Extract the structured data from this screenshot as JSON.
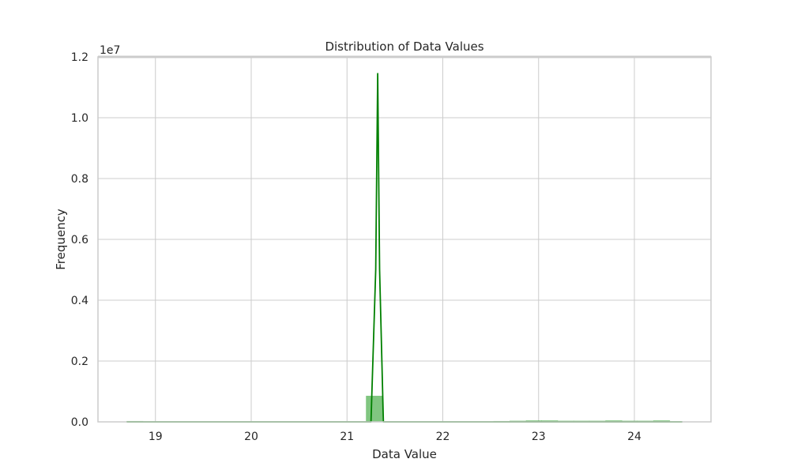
{
  "chart_data": {
    "type": "bar",
    "title": "Distribution of Data Values",
    "xlabel": "Data Value",
    "ylabel": "Frequency",
    "y_offset_label": "1e7",
    "y_scale": 10000000,
    "xlim": [
      18.4,
      24.8
    ],
    "ylim": [
      0,
      1.2
    ],
    "x_ticks": [
      19,
      20,
      21,
      22,
      23,
      24
    ],
    "x_tick_labels": [
      "19",
      "20",
      "21",
      "22",
      "23",
      "24"
    ],
    "y_ticks": [
      0,
      0.2,
      0.4,
      0.6,
      0.8,
      1.0,
      1.2
    ],
    "y_tick_labels": [
      "0.0",
      "0.2",
      "0.4",
      "0.6",
      "0.8",
      "1.0",
      "1.2"
    ],
    "grid": true,
    "histogram": {
      "bin_edges": [
        18.7,
        18.87,
        19.03,
        19.2,
        19.37,
        19.53,
        19.7,
        19.87,
        20.03,
        20.2,
        20.37,
        20.53,
        20.7,
        20.87,
        21.03,
        21.2,
        21.37,
        21.53,
        21.7,
        21.87,
        22.03,
        22.2,
        22.37,
        22.53,
        22.7,
        22.87,
        23.03,
        23.2,
        23.37,
        23.53,
        23.7,
        23.87,
        24.03,
        24.2,
        24.37,
        24.53
      ],
      "counts": [
        0.002,
        0.0,
        0.0,
        0.0,
        0.0,
        0.0,
        0.0,
        0.0,
        0.0,
        0.0,
        0.0,
        0.0,
        0.0,
        0.0,
        0.0,
        0.085,
        0.0,
        0.0,
        0.0,
        0.0,
        0.0,
        0.0,
        0.0,
        0.002,
        0.003,
        0.004,
        0.004,
        0.003,
        0.003,
        0.003,
        0.004,
        0.003,
        0.003,
        0.004,
        0.0
      ]
    },
    "kde": {
      "x": [
        18.7,
        21.0,
        21.25,
        21.3,
        21.32,
        21.34,
        21.38,
        21.5,
        22.5,
        24.5
      ],
      "y": [
        0.0,
        0.0,
        0.0,
        0.5,
        1.145,
        0.5,
        0.0,
        0.0,
        0.0,
        0.0
      ]
    },
    "colors": {
      "bars_fill": "#2ca02c",
      "bars_fill_opacity": 0.6,
      "kde_line": "#008000",
      "grid": "#cccccc",
      "spine": "#cccccc",
      "text": "#262626"
    }
  }
}
